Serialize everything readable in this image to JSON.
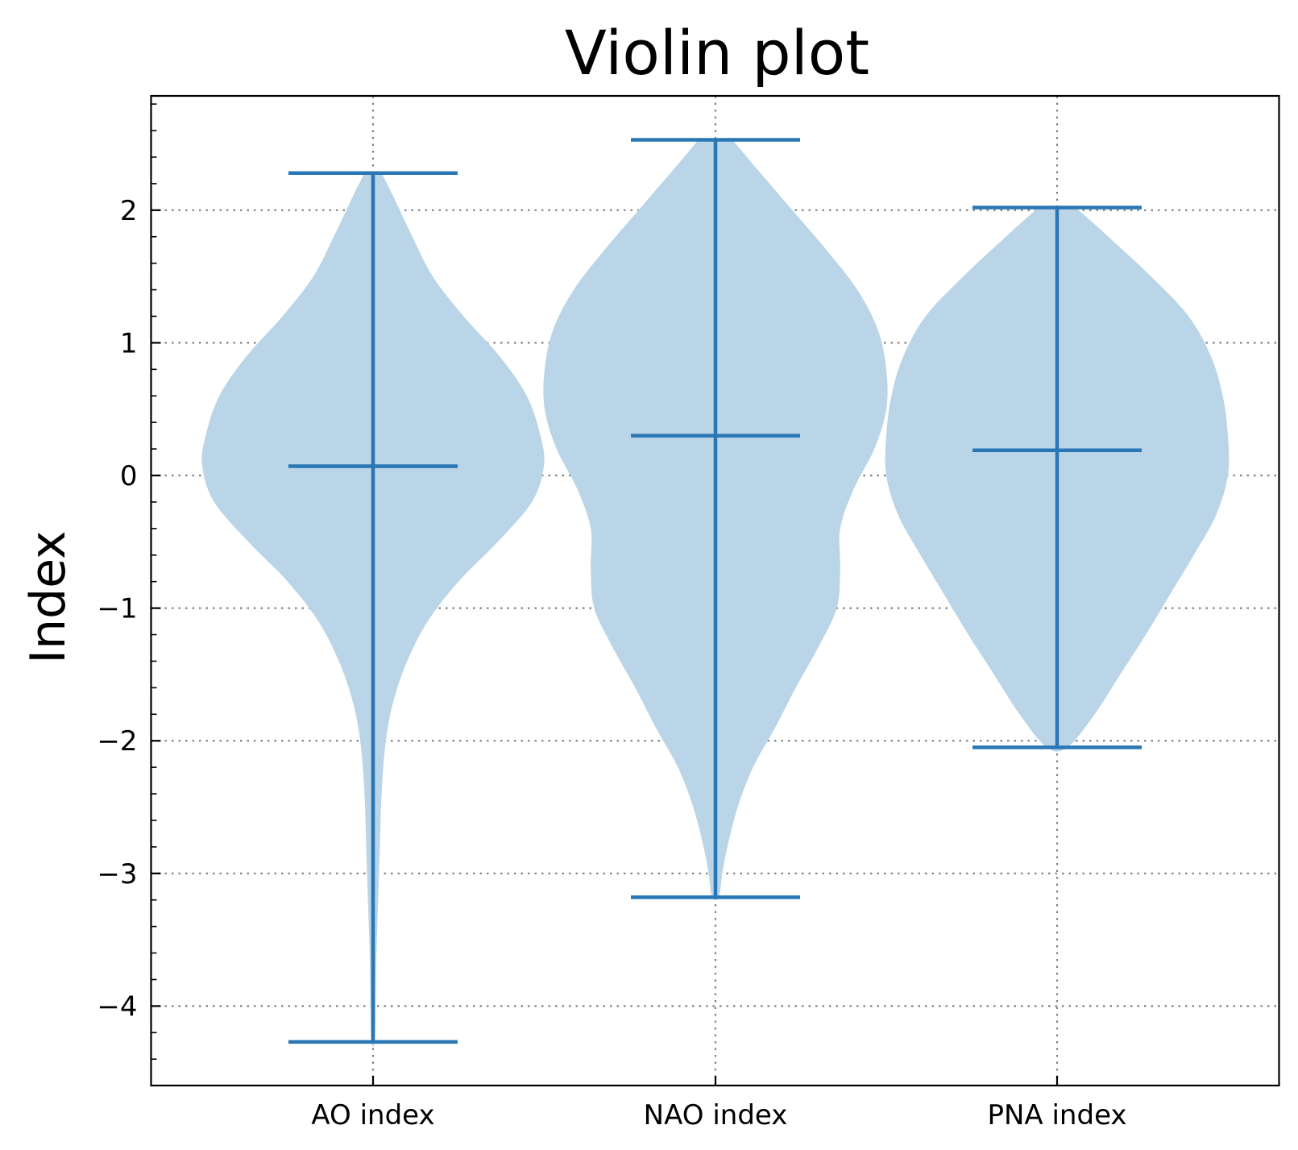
{
  "chart_data": {
    "type": "violin",
    "title": "Violin plot",
    "xlabel": "",
    "ylabel": "Index",
    "categories": [
      "AO index",
      "NAO index",
      "PNA index"
    ],
    "ylim": [
      -4.6,
      2.85
    ],
    "yticks": [
      -4,
      -3,
      -2,
      -1,
      0,
      1,
      2
    ],
    "ytick_labels": [
      "−4",
      "−3",
      "−2",
      "−1",
      "0",
      "1",
      "2"
    ],
    "grid": true,
    "colors": {
      "body": "#bad5e7",
      "line": "#2977b4",
      "grid": "#808080"
    },
    "series": [
      {
        "name": "AO index",
        "min": -4.27,
        "median": 0.07,
        "max": 2.28,
        "profile": [
          [
            2.28,
            0.05
          ],
          [
            2.1,
            0.12
          ],
          [
            1.8,
            0.23
          ],
          [
            1.5,
            0.35
          ],
          [
            1.2,
            0.53
          ],
          [
            0.9,
            0.74
          ],
          [
            0.6,
            0.9
          ],
          [
            0.3,
            0.98
          ],
          [
            0.07,
            1.0
          ],
          [
            -0.2,
            0.93
          ],
          [
            -0.5,
            0.73
          ],
          [
            -0.8,
            0.5
          ],
          [
            -1.1,
            0.32
          ],
          [
            -1.4,
            0.2
          ],
          [
            -1.7,
            0.12
          ],
          [
            -2.0,
            0.075
          ],
          [
            -2.4,
            0.05
          ],
          [
            -2.8,
            0.04
          ],
          [
            -3.2,
            0.03
          ],
          [
            -3.6,
            0.02
          ],
          [
            -4.0,
            0.015
          ],
          [
            -4.27,
            0.01
          ]
        ]
      },
      {
        "name": "NAO index",
        "min": -3.18,
        "median": 0.3,
        "max": 2.53,
        "profile": [
          [
            2.53,
            0.1
          ],
          [
            2.3,
            0.25
          ],
          [
            2.0,
            0.45
          ],
          [
            1.7,
            0.65
          ],
          [
            1.4,
            0.83
          ],
          [
            1.1,
            0.95
          ],
          [
            0.8,
            1.0
          ],
          [
            0.5,
            1.0
          ],
          [
            0.2,
            0.93
          ],
          [
            -0.1,
            0.81
          ],
          [
            -0.4,
            0.73
          ],
          [
            -0.7,
            0.73
          ],
          [
            -1.0,
            0.71
          ],
          [
            -1.3,
            0.6
          ],
          [
            -1.6,
            0.47
          ],
          [
            -1.9,
            0.35
          ],
          [
            -2.2,
            0.22
          ],
          [
            -2.5,
            0.13
          ],
          [
            -2.8,
            0.07
          ],
          [
            -3.0,
            0.04
          ],
          [
            -3.18,
            0.02
          ]
        ]
      },
      {
        "name": "PNA index",
        "min": -2.05,
        "median": 0.19,
        "max": 2.02,
        "profile": [
          [
            2.02,
            0.11
          ],
          [
            1.8,
            0.3
          ],
          [
            1.5,
            0.55
          ],
          [
            1.2,
            0.77
          ],
          [
            0.9,
            0.9
          ],
          [
            0.6,
            0.97
          ],
          [
            0.3,
            1.0
          ],
          [
            0.0,
            1.0
          ],
          [
            -0.3,
            0.93
          ],
          [
            -0.6,
            0.8
          ],
          [
            -0.9,
            0.66
          ],
          [
            -1.2,
            0.52
          ],
          [
            -1.5,
            0.37
          ],
          [
            -1.8,
            0.22
          ],
          [
            -2.05,
            0.06
          ]
        ]
      }
    ]
  }
}
